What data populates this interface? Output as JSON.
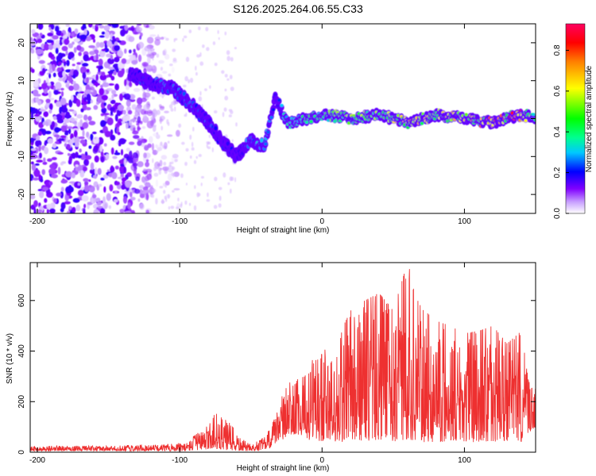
{
  "title": "S126.2025.264.06.55.C33",
  "chart_data": [
    {
      "type": "heatmap",
      "title": "",
      "xlabel": "Height of straight line (km)",
      "ylabel": "Frequency (Hz)",
      "xlim": [
        -205,
        150
      ],
      "ylim": [
        -25,
        25
      ],
      "x_ticks": [
        -200,
        -100,
        0,
        100
      ],
      "y_ticks": [
        -20,
        -10,
        0,
        10,
        20
      ],
      "colorbar": {
        "label": "Normalized spectral amplitude",
        "range": [
          0.0,
          0.93
        ],
        "ticks": [
          0.0,
          0.2,
          0.4,
          0.6,
          0.8
        ],
        "colors": [
          "#ffffff",
          "#c8a0ff",
          "#8000ff",
          "#0000ff",
          "#00c8ff",
          "#00ff90",
          "#00ff00",
          "#ffff00",
          "#ff8000",
          "#ff0000",
          "#ff0060"
        ]
      },
      "ridge": {
        "x": [
          -135,
          -120,
          -105,
          -90,
          -80,
          -70,
          -60,
          -50,
          -40,
          -33,
          -25,
          -10,
          0,
          20,
          40,
          60,
          80,
          100,
          120,
          140,
          150
        ],
        "freq": [
          12,
          9,
          8,
          3,
          -1,
          -6,
          -10,
          -6,
          -7,
          6,
          -1,
          0,
          1,
          0,
          1,
          -1,
          1,
          0,
          -1,
          1,
          0
        ],
        "peak_amplitude": [
          0.2,
          0.25,
          0.25,
          0.25,
          0.25,
          0.2,
          0.2,
          0.3,
          0.3,
          0.2,
          0.35,
          0.5,
          0.5,
          0.55,
          0.55,
          0.7,
          0.6,
          0.65,
          0.75,
          0.8,
          0.4
        ]
      },
      "noise_region": {
        "x_range": [
          -205,
          -120
        ],
        "freq_range": [
          -25,
          25
        ],
        "amplitude_range": [
          0.02,
          0.18
        ]
      }
    },
    {
      "type": "line",
      "title": "",
      "xlabel": "Height of straight line (km)",
      "ylabel": "SNR (10 * v/v)",
      "xlim": [
        -205,
        150
      ],
      "ylim": [
        0,
        750
      ],
      "x_ticks": [
        -200,
        -100,
        0,
        100
      ],
      "y_ticks": [
        0,
        200,
        400,
        600
      ],
      "color": "#ee3030",
      "envelope": {
        "x": [
          -205,
          -150,
          -110,
          -95,
          -80,
          -75,
          -65,
          -58,
          -50,
          -40,
          -35,
          -30,
          -25,
          -20,
          -15,
          -10,
          -5,
          0,
          5,
          10,
          15,
          20,
          30,
          40,
          50,
          60,
          70,
          80,
          90,
          100,
          110,
          120,
          130,
          140,
          145,
          150
        ],
        "low": [
          5,
          5,
          5,
          5,
          10,
          15,
          5,
          5,
          5,
          10,
          20,
          40,
          60,
          70,
          70,
          50,
          40,
          40,
          50,
          40,
          40,
          50,
          40,
          50,
          40,
          50,
          40,
          40,
          40,
          40,
          40,
          40,
          40,
          40,
          60,
          100
        ],
        "high": [
          25,
          25,
          30,
          40,
          110,
          155,
          120,
          60,
          30,
          60,
          110,
          180,
          290,
          260,
          310,
          300,
          400,
          450,
          340,
          400,
          500,
          560,
          600,
          630,
          560,
          750,
          570,
          520,
          500,
          470,
          480,
          500,
          430,
          480,
          280,
          250
        ]
      }
    }
  ]
}
